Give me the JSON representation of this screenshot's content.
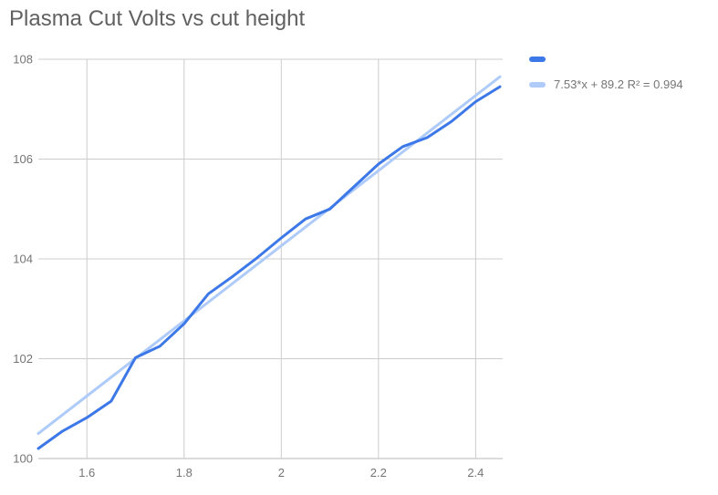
{
  "title": "Plasma Cut Volts vs cut height",
  "theme": {
    "background": "#ffffff",
    "gridline": "#cccccc",
    "axis_line": "#b7b7b7",
    "tick_text": "#757575",
    "title_text": "#616161"
  },
  "legend": {
    "position": "right",
    "items": [
      {
        "label": "",
        "color": "#3d78e8"
      },
      {
        "label": "7.53*x + 89.2 R² = 0.994",
        "color": "#aecbfa"
      }
    ]
  },
  "chart_data": {
    "type": "line",
    "title": "Plasma Cut Volts vs cut height",
    "xlabel": "",
    "ylabel": "",
    "xlim": [
      1.5,
      2.45
    ],
    "ylim": [
      100,
      108
    ],
    "x_ticks": [
      1.6,
      1.8,
      2.0,
      2.2,
      2.4
    ],
    "x_tick_labels": [
      "1.6",
      "1.8",
      "2",
      "2.2",
      "2.4"
    ],
    "y_ticks": [
      100,
      102,
      104,
      106,
      108
    ],
    "y_tick_labels": [
      "100",
      "102",
      "104",
      "106",
      "108"
    ],
    "grid": true,
    "legend_position": "right",
    "series": [
      {
        "name": "",
        "role": "data",
        "color": "#3d78e8",
        "stroke_width": 3,
        "x": [
          1.5,
          1.55,
          1.6,
          1.65,
          1.7,
          1.75,
          1.8,
          1.85,
          1.9,
          1.95,
          2.0,
          2.05,
          2.1,
          2.15,
          2.2,
          2.25,
          2.3,
          2.35,
          2.4,
          2.45
        ],
        "y": [
          100.2,
          100.55,
          100.82,
          101.15,
          102.02,
          102.25,
          102.7,
          103.3,
          103.65,
          104.02,
          104.42,
          104.8,
          105.0,
          105.45,
          105.9,
          106.25,
          106.43,
          106.75,
          107.15,
          107.45
        ]
      },
      {
        "name": "7.53*x + 89.2 R² = 0.994",
        "role": "trendline",
        "color": "#aecbfa",
        "stroke_width": 3,
        "slope": 7.53,
        "intercept": 89.2,
        "r_squared": 0.994,
        "x": [
          1.5,
          2.45
        ],
        "y": [
          100.5,
          107.65
        ]
      }
    ]
  }
}
